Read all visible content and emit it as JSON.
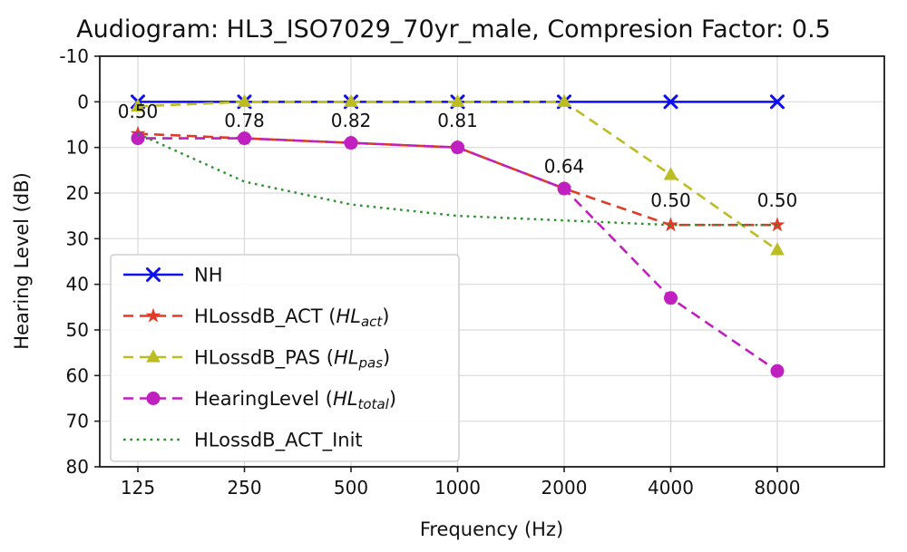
{
  "chart_data": {
    "type": "line",
    "title": "Audiogram: HL3_ISO7029_70yr_male, Compresion Factor: 0.5",
    "xlabel": "Frequency (Hz)",
    "ylabel": "Hearing Level (dB)",
    "x_scale": "log",
    "y_inverted": true,
    "grid": true,
    "ylim": [
      -10,
      80
    ],
    "x_ticks": [
      "125",
      "250",
      "500",
      "1000",
      "2000",
      "4000",
      "8000"
    ],
    "y_ticks": [
      -10,
      0,
      10,
      20,
      30,
      40,
      50,
      60,
      70,
      80
    ],
    "categories": [
      125,
      250,
      500,
      1000,
      2000,
      4000,
      8000
    ],
    "series": [
      {
        "name": "NH",
        "values": [
          0,
          0,
          0,
          0,
          0,
          0,
          0
        ],
        "color": "#0d0dee",
        "style": "solid",
        "marker": "x",
        "width": 2.5
      },
      {
        "name": "HLossdB_ACT",
        "values": [
          7,
          8,
          9,
          10,
          19,
          27,
          27
        ],
        "color": "#e03b28",
        "style": "dashed",
        "marker": "star",
        "width": 2.6
      },
      {
        "name": "HLossdB_PAS",
        "values": [
          1,
          0,
          0,
          0,
          0,
          16,
          32.5
        ],
        "color": "#bcbd22",
        "style": "dashed",
        "marker": "triangle",
        "width": 2.6
      },
      {
        "name": "HearingLevel",
        "values": [
          8,
          8,
          9,
          10,
          19,
          43,
          59
        ],
        "color": "#bf20bf",
        "style": "dashed",
        "marker": "circle",
        "width": 2.6,
        "dash_offset": 9
      },
      {
        "name": "HLossdB_ACT_Init",
        "values": [
          7,
          17.5,
          22.5,
          25,
          26,
          27,
          27
        ],
        "color": "#2a8f2a",
        "style": "dotted",
        "marker": "none",
        "width": 2.4
      }
    ],
    "annotations": [
      {
        "x": 125,
        "y": 3.5,
        "label": "0.50"
      },
      {
        "x": 250,
        "y": 5.5,
        "label": "0.78"
      },
      {
        "x": 500,
        "y": 5.5,
        "label": "0.82"
      },
      {
        "x": 1000,
        "y": 5.5,
        "label": "0.81"
      },
      {
        "x": 2000,
        "y": 15.5,
        "label": "0.64"
      },
      {
        "x": 4000,
        "y": 23,
        "label": "0.50"
      },
      {
        "x": 8000,
        "y": 23,
        "label": "0.50"
      }
    ],
    "legend": {
      "position": "lower left",
      "entries": [
        {
          "series": "NH",
          "parts": [
            [
              "NH",
              "n"
            ]
          ]
        },
        {
          "series": "HLossdB_ACT",
          "parts": [
            [
              "HLossdB_ACT (",
              "n"
            ],
            [
              "HL",
              "i"
            ],
            [
              "act",
              "si"
            ],
            [
              ")",
              "n"
            ]
          ]
        },
        {
          "series": "HLossdB_PAS",
          "parts": [
            [
              "HLossdB_PAS (",
              "n"
            ],
            [
              "HL",
              "i"
            ],
            [
              "pas",
              "si"
            ],
            [
              ")",
              "n"
            ]
          ]
        },
        {
          "series": "HearingLevel",
          "parts": [
            [
              "HearingLevel (",
              "n"
            ],
            [
              "HL",
              "i"
            ],
            [
              "total",
              "si"
            ],
            [
              ")",
              "n"
            ]
          ]
        },
        {
          "series": "HLossdB_ACT_Init",
          "parts": [
            [
              "HLossdB_ACT_Init",
              "n"
            ]
          ]
        }
      ]
    }
  }
}
